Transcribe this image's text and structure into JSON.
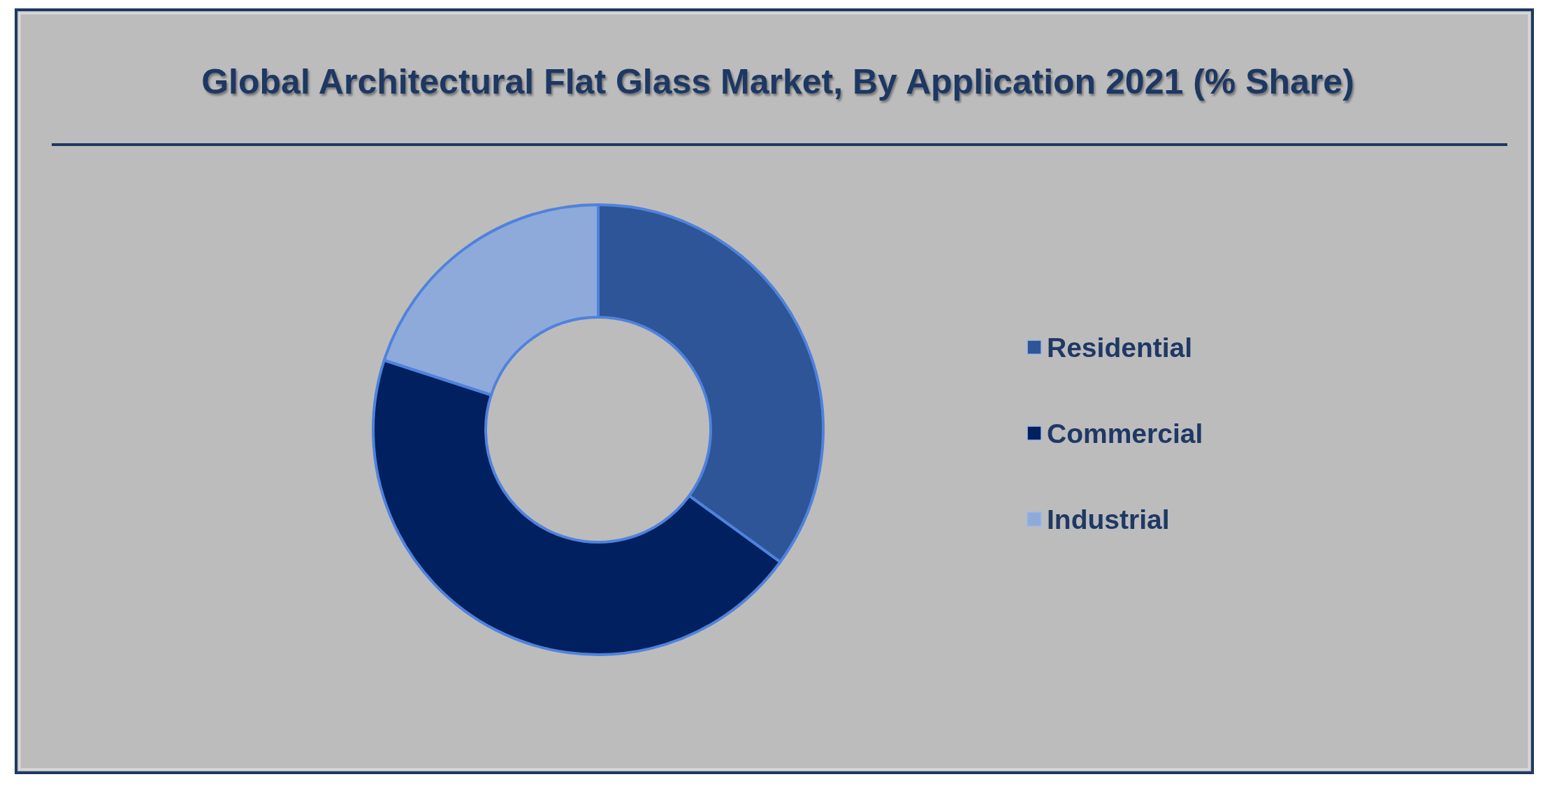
{
  "chart_data": {
    "type": "donut",
    "title": "Global Architectural Flat Glass Market, By Application 2021 (% Share)",
    "categories": [
      "Residential",
      "Commercial",
      "Industrial"
    ],
    "values": [
      35,
      45,
      20
    ],
    "colors": [
      "#2e5597",
      "#00205f",
      "#8eaadb"
    ],
    "legend": "right"
  }
}
